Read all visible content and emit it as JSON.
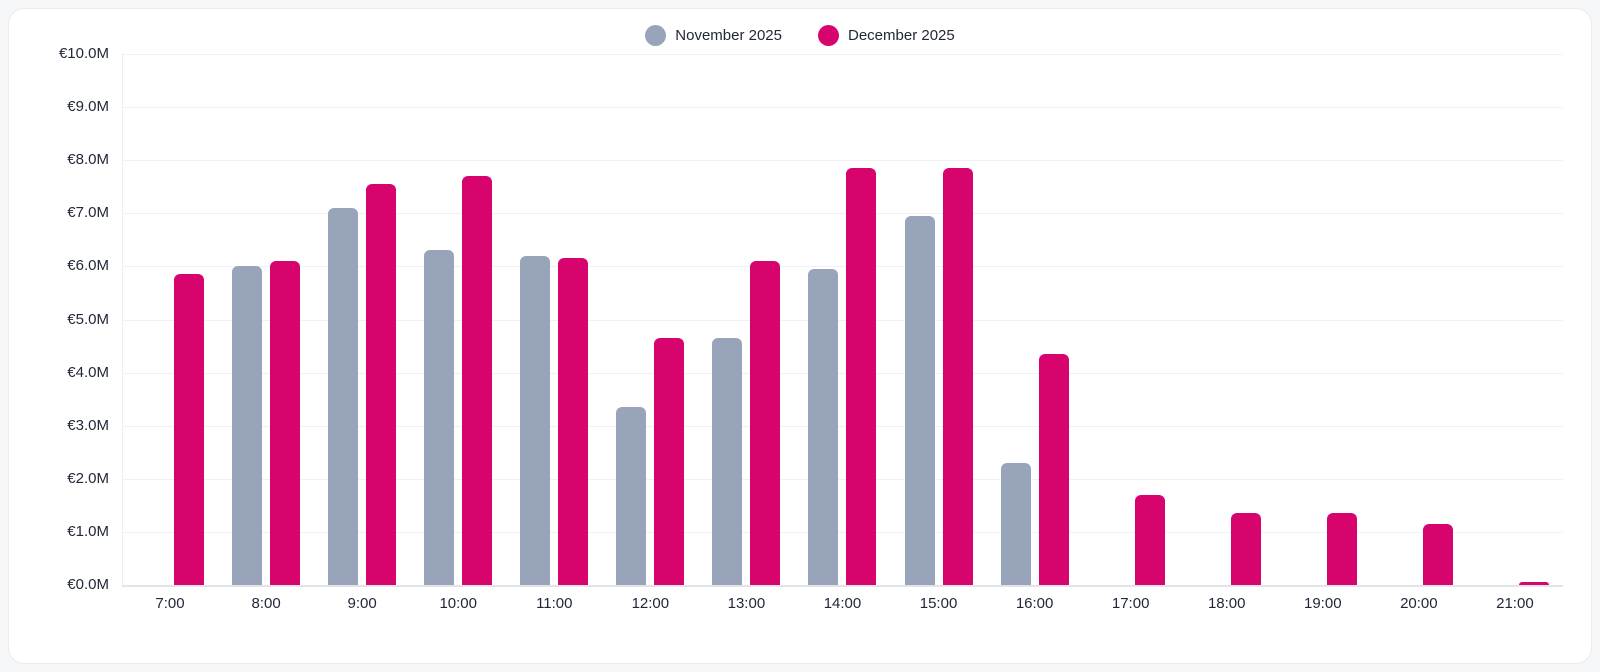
{
  "page": {
    "background_color": "#f6f7f9",
    "card_background": "#ffffff",
    "card_border_color": "#e9ebee"
  },
  "legend": {
    "position": "top-center",
    "items": [
      {
        "label": "November 2025",
        "color": "#97a4ba"
      },
      {
        "label": "December 2025",
        "color": "#d8046e"
      }
    ]
  },
  "axis": {
    "y_ticks": [
      "€10.0M",
      "€9.0M",
      "€8.0M",
      "€7.0M",
      "€6.0M",
      "€5.0M",
      "€4.0M",
      "€3.0M",
      "€2.0M",
      "€1.0M",
      "€0.0M"
    ],
    "grid_color": "#f0f1f4",
    "baseline_color": "#e1e4e9",
    "label_color": "#1f2636"
  },
  "chart_data": {
    "type": "bar",
    "title": "",
    "xlabel": "",
    "ylabel": "",
    "ylim": [
      0,
      10
    ],
    "y_unit": "€M",
    "y_tick_step": 1,
    "grid": "horizontal",
    "legend_position": "top-center",
    "categories": [
      "7:00",
      "8:00",
      "9:00",
      "10:00",
      "11:00",
      "12:00",
      "13:00",
      "14:00",
      "15:00",
      "16:00",
      "17:00",
      "18:00",
      "19:00",
      "20:00",
      "21:00"
    ],
    "series": [
      {
        "name": "November 2025",
        "color": "#97a4ba",
        "values": [
          null,
          6.0,
          7.1,
          6.3,
          6.2,
          3.35,
          4.65,
          5.95,
          6.95,
          2.3,
          null,
          null,
          null,
          null,
          null
        ]
      },
      {
        "name": "December 2025",
        "color": "#d8046e",
        "values": [
          5.85,
          6.1,
          7.55,
          7.7,
          6.15,
          4.65,
          6.1,
          7.85,
          7.85,
          4.35,
          1.7,
          1.35,
          1.35,
          1.15,
          0.05
        ]
      }
    ]
  }
}
